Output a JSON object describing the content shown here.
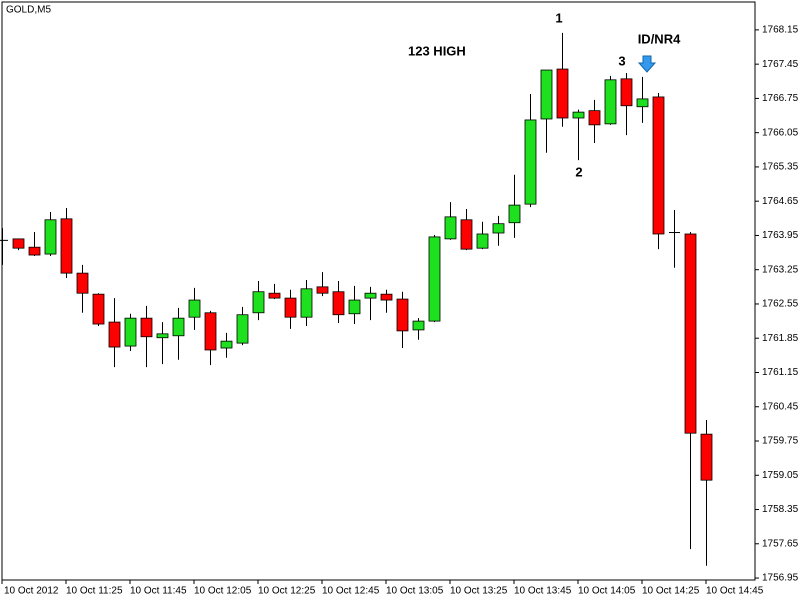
{
  "chart_data": {
    "type": "candlestick",
    "title": "GOLD,M5",
    "categories": [
      "10 Oct 2012",
      null,
      null,
      null,
      "10 Oct 11:25",
      null,
      null,
      null,
      "10 Oct 11:45",
      null,
      null,
      null,
      "10 Oct 12:05",
      null,
      null,
      null,
      "10 Oct 12:25",
      null,
      null,
      null,
      "10 Oct 12:45",
      null,
      null,
      null,
      "10 Oct 13:05",
      null,
      null,
      null,
      "10 Oct 13:25",
      null,
      null,
      null,
      "10 Oct 13:45",
      null,
      null,
      null,
      "10 Oct 14:05",
      null,
      null,
      null,
      "10 Oct 14:25",
      null,
      null,
      null,
      "10 Oct 14:45"
    ],
    "open": [
      1763.86,
      1763.88,
      1763.71,
      1763.57,
      1764.29,
      1763.18,
      1762.75,
      1762.18,
      1761.69,
      1762.26,
      1761.86,
      1761.9,
      1762.28,
      1762.37,
      1761.65,
      1761.75,
      1762.37,
      1762.77,
      1762.67,
      1762.28,
      1762.9,
      1762.8,
      1762.35,
      1762.67,
      1762.75,
      1762.65,
      1762.02,
      1762.2,
      1763.88,
      1764.27,
      1763.69,
      1764.0,
      1764.21,
      1764.59,
      1766.33,
      1767.35,
      1766.35,
      1766.5,
      1766.23,
      1767.15,
      1766.58,
      1766.78,
      1764.02,
      1763.98,
      1759.89
    ],
    "high": [
      1764.1,
      1763.88,
      1764.02,
      1764.43,
      1764.51,
      1763.35,
      1762.77,
      1762.67,
      1762.35,
      1762.51,
      1762.18,
      1762.47,
      1762.88,
      1762.41,
      1761.96,
      1762.49,
      1763.02,
      1762.96,
      1762.84,
      1763.04,
      1763.2,
      1763.02,
      1762.92,
      1762.9,
      1762.84,
      1762.8,
      1762.26,
      1763.96,
      1764.63,
      1764.49,
      1764.23,
      1764.35,
      1765.19,
      1766.84,
      1767.33,
      1768.09,
      1766.52,
      1766.72,
      1767.21,
      1767.27,
      1767.19,
      1766.86,
      1764.47,
      1764.02,
      1760.18
    ],
    "low": [
      1763.35,
      1763.65,
      1763.53,
      1763.53,
      1763.08,
      1762.37,
      1762.1,
      1761.26,
      1761.59,
      1761.26,
      1761.32,
      1761.41,
      1762.02,
      1761.3,
      1761.45,
      1761.71,
      1762.22,
      1762.65,
      1762.04,
      1762.1,
      1762.71,
      1762.16,
      1762.14,
      1762.22,
      1762.37,
      1761.65,
      1761.82,
      1762.18,
      1763.86,
      1763.65,
      1763.67,
      1763.74,
      1763.9,
      1764.53,
      1765.64,
      1766.17,
      1765.49,
      1765.84,
      1766.21,
      1766.0,
      1766.25,
      1763.67,
      1763.29,
      1757.54,
      1757.2
    ],
    "close": [
      1763.86,
      1763.69,
      1763.55,
      1764.27,
      1763.18,
      1762.77,
      1762.14,
      1761.67,
      1762.26,
      1761.88,
      1761.94,
      1762.26,
      1762.63,
      1761.61,
      1761.79,
      1762.33,
      1762.8,
      1762.67,
      1762.28,
      1762.86,
      1762.77,
      1762.33,
      1762.63,
      1762.77,
      1762.63,
      1762.0,
      1762.2,
      1763.92,
      1764.33,
      1763.67,
      1763.98,
      1764.19,
      1764.57,
      1766.31,
      1767.33,
      1766.35,
      1766.47,
      1766.21,
      1767.13,
      1766.6,
      1766.74,
      1763.98,
      1764.02,
      1759.91,
      1758.95
    ],
    "up_color": "#1fe01f",
    "down_color": "#ff0000",
    "ylim": [
      1756.91,
      1768.72
    ],
    "yticks": [
      1768.15,
      1767.45,
      1766.75,
      1766.05,
      1765.35,
      1764.65,
      1763.95,
      1763.25,
      1762.55,
      1761.85,
      1761.15,
      1760.45,
      1759.75,
      1759.05,
      1758.35,
      1757.65,
      1756.95
    ],
    "annotations": [
      "123 HIGH",
      "1",
      "2",
      "3",
      "ID/NR4"
    ]
  }
}
